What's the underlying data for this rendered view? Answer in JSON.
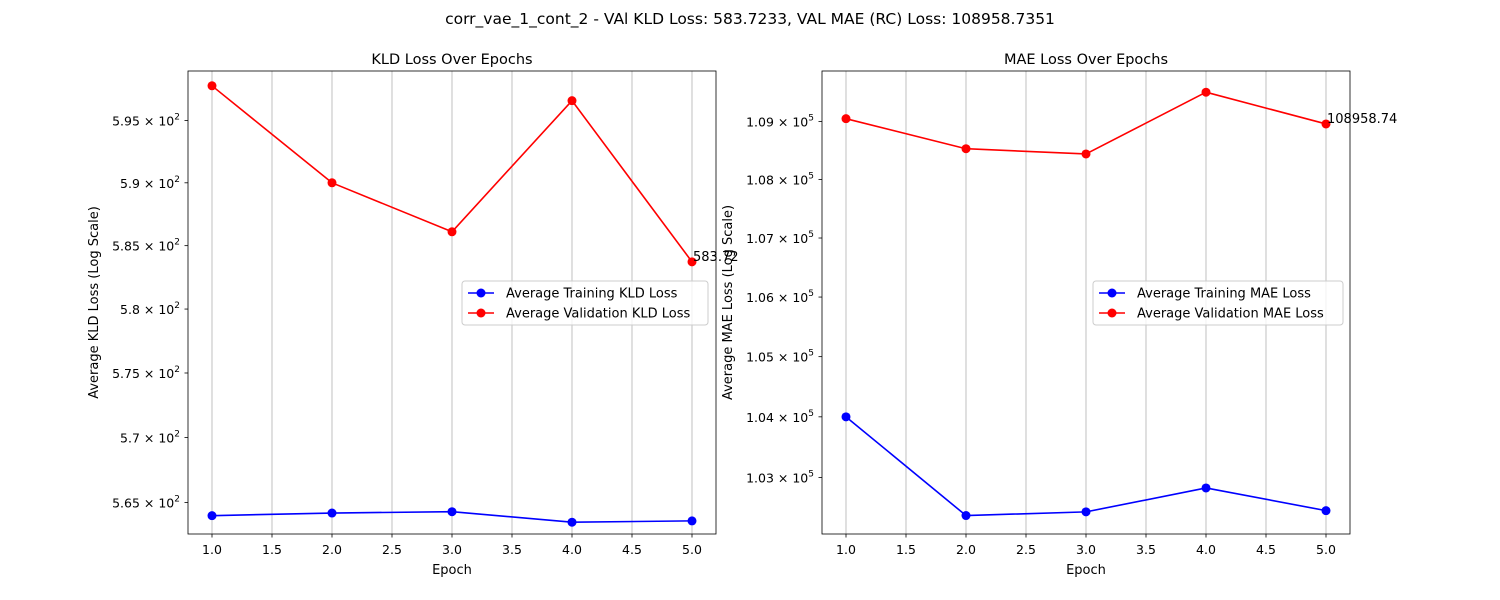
{
  "suptitle": "corr_vae_1_cont_2 - VAl KLD Loss: 583.7233, VAL MAE (RC) Loss: 108958.7351",
  "chart_data": [
    {
      "type": "line",
      "title": "KLD Loss Over Epochs",
      "xlabel": "Epoch",
      "ylabel": "Average KLD Loss (Log Scale)",
      "yscale": "log",
      "grid": "x-only",
      "legend_loc": "center-right",
      "x": [
        1,
        2,
        3,
        4,
        5
      ],
      "xlim": [
        0.8,
        5.2
      ],
      "ylim": [
        562.6,
        599.0
      ],
      "xticks": [
        1.0,
        1.5,
        2.0,
        2.5,
        3.0,
        3.5,
        4.0,
        4.5,
        5.0
      ],
      "xtick_labels": [
        "1.0",
        "1.5",
        "2.0",
        "2.5",
        "3.0",
        "3.5",
        "4.0",
        "4.5",
        "5.0"
      ],
      "yticks": [
        565,
        570,
        575,
        580,
        585,
        590,
        595
      ],
      "ytick_labels": [
        {
          "mantissa": "5.65",
          "exp": "2"
        },
        {
          "mantissa": "5.7",
          "exp": "2"
        },
        {
          "mantissa": "5.75",
          "exp": "2"
        },
        {
          "mantissa": "5.8",
          "exp": "2"
        },
        {
          "mantissa": "5.85",
          "exp": "2"
        },
        {
          "mantissa": "5.9",
          "exp": "2"
        },
        {
          "mantissa": "5.95",
          "exp": "2"
        }
      ],
      "series": [
        {
          "name": "Average Training KLD Loss",
          "color": "#0000ff",
          "values": [
            564.0,
            564.2,
            564.3,
            563.5,
            563.6
          ]
        },
        {
          "name": "Average Validation KLD Loss",
          "color": "#ff0000",
          "values": [
            597.8,
            590.0,
            586.1,
            596.6,
            583.72
          ]
        }
      ],
      "annotation": {
        "text": "583.72",
        "x": 5,
        "y": 583.72
      }
    },
    {
      "type": "line",
      "title": "MAE Loss Over Epochs",
      "xlabel": "Epoch",
      "ylabel": "Average MAE Loss (Log Scale)",
      "yscale": "log",
      "grid": "x-only",
      "legend_loc": "center-right",
      "x": [
        1,
        2,
        3,
        4,
        5
      ],
      "xlim": [
        0.8,
        5.2
      ],
      "ylim": [
        102080,
        109880
      ],
      "xticks": [
        1.0,
        1.5,
        2.0,
        2.5,
        3.0,
        3.5,
        4.0,
        4.5,
        5.0
      ],
      "xtick_labels": [
        "1.0",
        "1.5",
        "2.0",
        "2.5",
        "3.0",
        "3.5",
        "4.0",
        "4.5",
        "5.0"
      ],
      "yticks": [
        103000,
        104000,
        105000,
        106000,
        107000,
        108000,
        109000
      ],
      "ytick_labels": [
        {
          "mantissa": "1.03",
          "exp": "5"
        },
        {
          "mantissa": "1.04",
          "exp": "5"
        },
        {
          "mantissa": "1.05",
          "exp": "5"
        },
        {
          "mantissa": "1.06",
          "exp": "5"
        },
        {
          "mantissa": "1.07",
          "exp": "5"
        },
        {
          "mantissa": "1.08",
          "exp": "5"
        },
        {
          "mantissa": "1.09",
          "exp": "5"
        }
      ],
      "series": [
        {
          "name": "Average Training MAE Loss",
          "color": "#0000ff",
          "values": [
            104000,
            102380,
            102440,
            102830,
            102460
          ]
        },
        {
          "name": "Average Validation MAE Loss",
          "color": "#ff0000",
          "values": [
            109050,
            108530,
            108440,
            109510,
            108958.74
          ]
        }
      ],
      "annotation": {
        "text": "108958.74",
        "x": 5,
        "y": 108958.74
      }
    }
  ]
}
